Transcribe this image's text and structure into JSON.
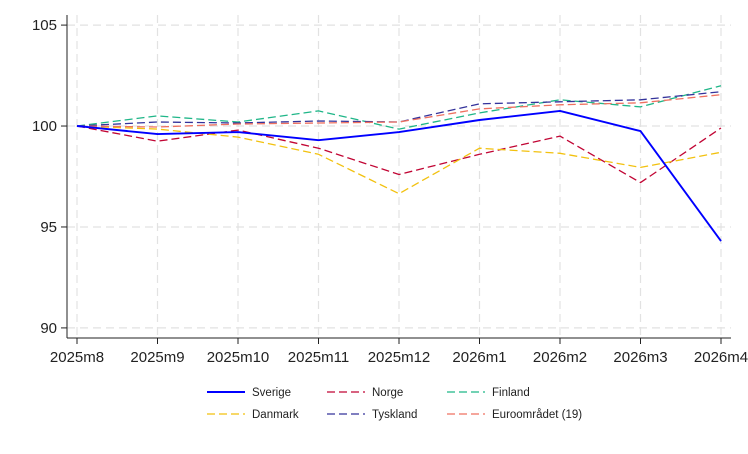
{
  "chart_data": {
    "type": "line",
    "x": [
      "2025m8",
      "2025m9",
      "2025m10",
      "2025m11",
      "2025m12",
      "2026m1",
      "2026m2",
      "2026m3",
      "2026m4"
    ],
    "ylim": [
      89.5,
      105.5
    ],
    "yticks": [
      90,
      95,
      100,
      105
    ],
    "ytick_labels": [
      "90",
      "95",
      "100",
      "105"
    ],
    "grid": true,
    "legend_position": "bottom",
    "series": [
      {
        "name": "Sverige",
        "color": "#0000ff",
        "dashed": false,
        "values": [
          100,
          99.6,
          99.7,
          99.3,
          99.7,
          100.3,
          100.75,
          99.75,
          94.3
        ]
      },
      {
        "name": "Norge",
        "color": "#c10534",
        "dashed": true,
        "values": [
          100,
          99.25,
          99.8,
          98.9,
          97.6,
          98.6,
          99.5,
          97.2,
          99.9
        ]
      },
      {
        "name": "Finland",
        "color": "#1fb688",
        "dashed": true,
        "values": [
          100,
          100.5,
          100.2,
          100.75,
          99.85,
          100.65,
          101.3,
          100.95,
          102.0
        ]
      },
      {
        "name": "Danmark",
        "color": "#f2c10f",
        "dashed": true,
        "values": [
          100,
          99.85,
          99.45,
          98.6,
          96.65,
          98.9,
          98.65,
          97.95,
          98.7
        ]
      },
      {
        "name": "Tyskland",
        "color": "#34339b",
        "dashed": true,
        "values": [
          100,
          100.2,
          100.15,
          100.25,
          100.2,
          101.1,
          101.2,
          101.3,
          101.7
        ]
      },
      {
        "name": "Euroområdet (19)",
        "color": "#ef7160",
        "dashed": true,
        "values": [
          100,
          99.95,
          100.1,
          100.15,
          100.2,
          100.85,
          101.05,
          101.15,
          101.55
        ]
      }
    ]
  }
}
